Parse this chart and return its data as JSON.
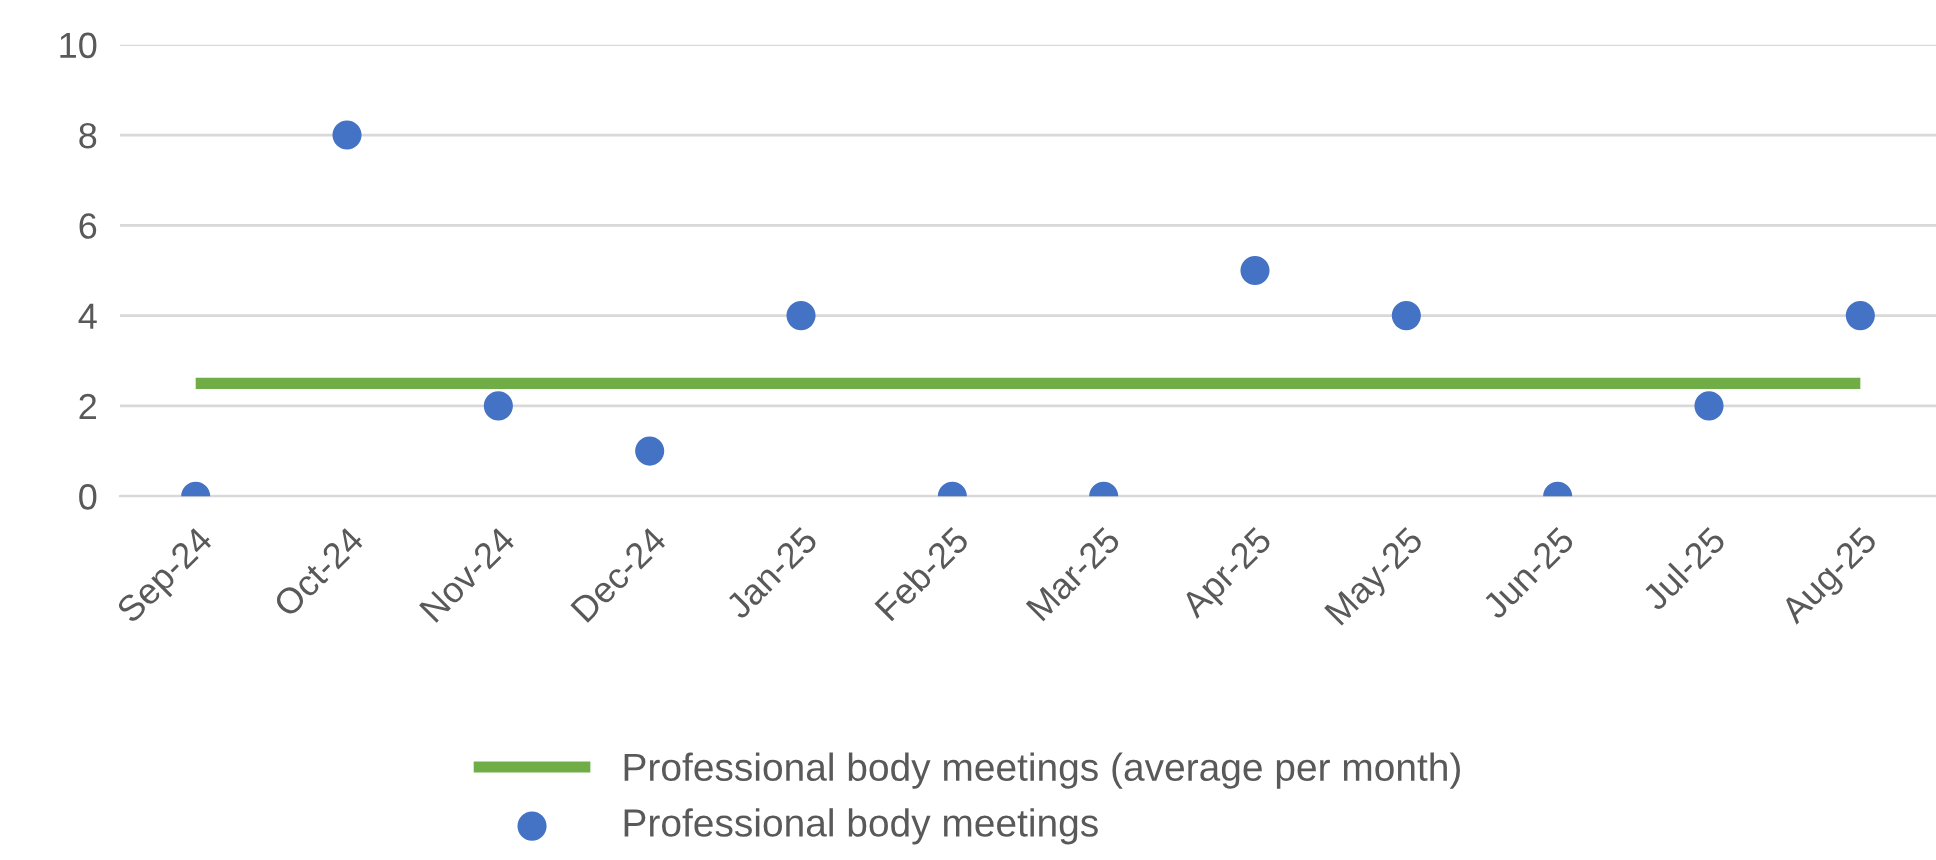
{
  "chart_data": {
    "type": "scatter",
    "categories": [
      "Sep-24",
      "Oct-24",
      "Nov-24",
      "Dec-24",
      "Jan-25",
      "Feb-25",
      "Mar-25",
      "Apr-25",
      "May-25",
      "Jun-25",
      "Jul-25",
      "Aug-25"
    ],
    "series": [
      {
        "name": "Professional body meetings (average per month)",
        "type": "line",
        "color": "#70ad47",
        "marker": "none",
        "values": [
          2.5,
          2.5,
          2.5,
          2.5,
          2.5,
          2.5,
          2.5,
          2.5,
          2.5,
          2.5,
          2.5,
          2.5
        ]
      },
      {
        "name": "Professional body meetings",
        "color": "#4472c4",
        "marker": "circle",
        "values": [
          0,
          8,
          2,
          1,
          4,
          0,
          0,
          5,
          4,
          0,
          2,
          4
        ]
      }
    ],
    "ylim": [
      0,
      10
    ],
    "yticks": [
      0,
      2,
      4,
      6,
      8,
      10
    ],
    "grid": "y",
    "legend": "bottom"
  }
}
